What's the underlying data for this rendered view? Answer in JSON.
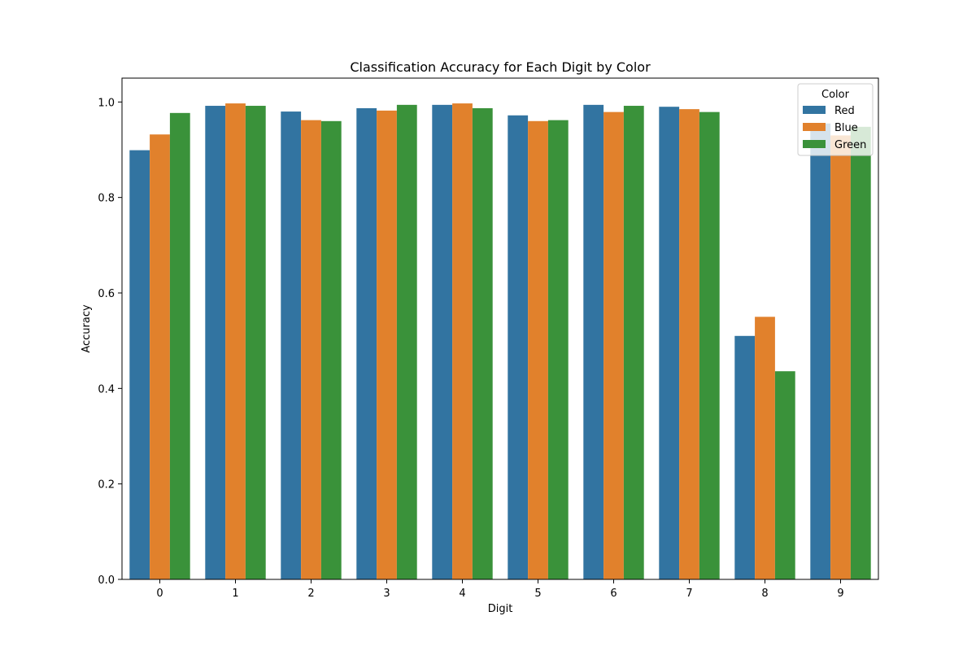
{
  "chart_data": {
    "type": "bar",
    "title": "Classification Accuracy for Each Digit by Color",
    "xlabel": "Digit",
    "ylabel": "Accuracy",
    "categories": [
      "0",
      "1",
      "2",
      "3",
      "4",
      "5",
      "6",
      "7",
      "8",
      "9"
    ],
    "ylim": [
      0,
      1.05
    ],
    "yticks": [
      "0.0",
      "0.2",
      "0.4",
      "0.6",
      "0.8",
      "1.0"
    ],
    "grid": false,
    "legend": {
      "title": "Color",
      "placement": "top-right"
    },
    "series": [
      {
        "name": "Red",
        "color": "#3274a1",
        "values": [
          0.899,
          0.992,
          0.98,
          0.987,
          0.994,
          0.972,
          0.994,
          0.99,
          0.51,
          0.955
        ]
      },
      {
        "name": "Blue",
        "color": "#e1812c",
        "values": [
          0.932,
          0.997,
          0.962,
          0.982,
          0.997,
          0.96,
          0.979,
          0.985,
          0.55,
          0.93
        ]
      },
      {
        "name": "Green",
        "color": "#3a923a",
        "values": [
          0.977,
          0.992,
          0.96,
          0.994,
          0.987,
          0.962,
          0.992,
          0.979,
          0.436,
          0.948
        ]
      }
    ]
  }
}
